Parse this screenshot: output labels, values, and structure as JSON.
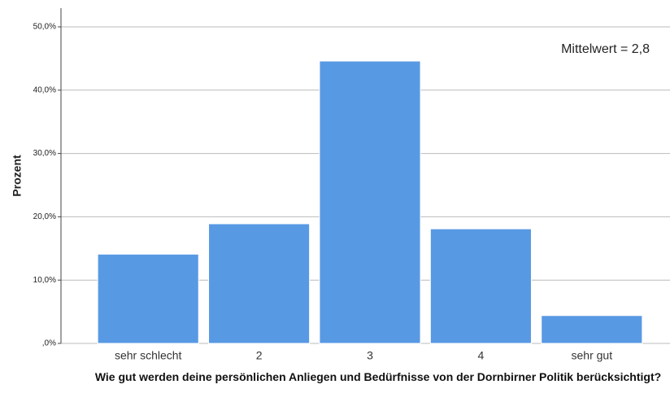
{
  "chart_data": {
    "type": "bar",
    "x_label": "Wie gut werden deine persönlichen Anliegen und Bedürfnisse von der Dornbirner Politik berücksichtigt?",
    "y_label": "Prozent",
    "annotation": "Mittelwert = 2,8",
    "categories": [
      "sehr schlecht",
      "2",
      "3",
      "4",
      "sehr gut"
    ],
    "values": [
      14.1,
      18.9,
      44.6,
      18.1,
      4.4
    ],
    "color": "#5899e4",
    "ylim": [
      0,
      50
    ],
    "yticks": [
      {
        "value": 0,
        "label": ",0%"
      },
      {
        "value": 10,
        "label": "10,0%"
      },
      {
        "value": 20,
        "label": "20,0%"
      },
      {
        "value": 30,
        "label": "30,0%"
      },
      {
        "value": 40,
        "label": "40,0%"
      },
      {
        "value": 50,
        "label": "50,0%"
      }
    ],
    "grid": true
  }
}
